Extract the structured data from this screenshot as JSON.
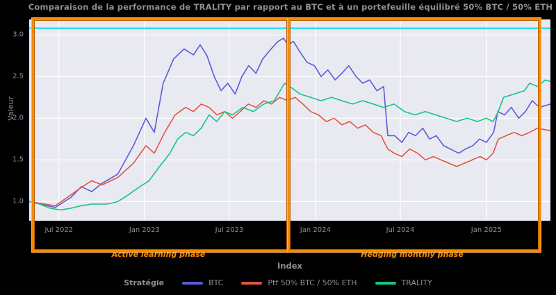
{
  "title": "Comparaison de la performance de TRALITY par rapport au BTC et à un portefeuille équilibré 50% BTC / 50% ETH",
  "axes": {
    "xlabel": "Index",
    "ylabel": "Valeur",
    "x_ticks": [
      {
        "label": "Jul 2022",
        "f": 0.057
      },
      {
        "label": "Jan 2023",
        "f": 0.221
      },
      {
        "label": "Jul 2023",
        "f": 0.384
      },
      {
        "label": "Jan 2024",
        "f": 0.549
      },
      {
        "label": "Jul 2024",
        "f": 0.712
      },
      {
        "label": "Jan 2025",
        "f": 0.877
      }
    ],
    "y_ticks": [
      {
        "label": "1.0",
        "v": 1.0
      },
      {
        "label": "1.5",
        "v": 1.5
      },
      {
        "label": "2.0",
        "v": 2.0
      },
      {
        "label": "2.5",
        "v": 2.5
      },
      {
        "label": "3.0",
        "v": 3.0
      }
    ]
  },
  "annotations": {
    "left_phase_label": "Active learning phase",
    "right_phase_label": "Hedging monthly phase",
    "box_color": "#f68b00"
  },
  "legend": {
    "title": "Stratégie",
    "entries": [
      {
        "label": "BTC",
        "color": "#5b5bd6"
      },
      {
        "label": "Ptf 50% BTC / 50% ETH",
        "color": "#e25440"
      },
      {
        "label": "TRALITY",
        "color": "#12c48b"
      }
    ]
  },
  "chart_data": {
    "type": "line",
    "title": "Comparaison de la performance de TRALITY par rapport au BTC et à un portefeuille équilibré 50% BTC / 50% ETH",
    "xlabel": "Index",
    "ylabel": "Valeur",
    "x_axis": "dates from May 2022 to Apr 2025 (f = fraction of axis width)",
    "ylim": [
      0.77,
      3.185
    ],
    "grid": true,
    "plot_bg": "#e9e9f1",
    "grid_color": "#ffffff",
    "reference_line": {
      "value": 3.08,
      "color": "#00dbe8",
      "name": "max-reference"
    },
    "series": [
      {
        "name": "BTC",
        "color": "#5b5bd6",
        "points": [
          [
            0,
            1.0
          ],
          [
            0.02,
            0.97
          ],
          [
            0.05,
            0.93
          ],
          [
            0.08,
            1.05
          ],
          [
            0.1,
            1.18
          ],
          [
            0.12,
            1.12
          ],
          [
            0.14,
            1.22
          ],
          [
            0.17,
            1.33
          ],
          [
            0.2,
            1.67
          ],
          [
            0.224,
            2.0
          ],
          [
            0.24,
            1.83
          ],
          [
            0.257,
            2.42
          ],
          [
            0.277,
            2.71
          ],
          [
            0.297,
            2.83
          ],
          [
            0.315,
            2.76
          ],
          [
            0.328,
            2.88
          ],
          [
            0.341,
            2.75
          ],
          [
            0.355,
            2.5
          ],
          [
            0.368,
            2.33
          ],
          [
            0.381,
            2.42
          ],
          [
            0.395,
            2.29
          ],
          [
            0.408,
            2.5
          ],
          [
            0.421,
            2.63
          ],
          [
            0.435,
            2.54
          ],
          [
            0.448,
            2.71
          ],
          [
            0.464,
            2.83
          ],
          [
            0.477,
            2.92
          ],
          [
            0.488,
            2.96
          ],
          [
            0.496,
            2.88
          ],
          [
            0.507,
            2.92
          ],
          [
            0.52,
            2.79
          ],
          [
            0.533,
            2.67
          ],
          [
            0.547,
            2.63
          ],
          [
            0.56,
            2.5
          ],
          [
            0.573,
            2.58
          ],
          [
            0.587,
            2.46
          ],
          [
            0.6,
            2.54
          ],
          [
            0.613,
            2.63
          ],
          [
            0.627,
            2.5
          ],
          [
            0.64,
            2.42
          ],
          [
            0.653,
            2.46
          ],
          [
            0.667,
            2.33
          ],
          [
            0.68,
            2.38
          ],
          [
            0.688,
            1.79
          ],
          [
            0.701,
            1.79
          ],
          [
            0.715,
            1.71
          ],
          [
            0.728,
            1.83
          ],
          [
            0.741,
            1.79
          ],
          [
            0.755,
            1.88
          ],
          [
            0.768,
            1.75
          ],
          [
            0.781,
            1.79
          ],
          [
            0.795,
            1.67
          ],
          [
            0.808,
            1.63
          ],
          [
            0.824,
            1.58
          ],
          [
            0.837,
            1.63
          ],
          [
            0.851,
            1.67
          ],
          [
            0.864,
            1.75
          ],
          [
            0.877,
            1.71
          ],
          [
            0.891,
            1.83
          ],
          [
            0.899,
            2.08
          ],
          [
            0.912,
            2.04
          ],
          [
            0.925,
            2.13
          ],
          [
            0.939,
            2.0
          ],
          [
            0.952,
            2.08
          ],
          [
            0.965,
            2.21
          ],
          [
            0.979,
            2.13
          ],
          [
            1.0,
            2.17
          ]
        ]
      },
      {
        "name": "Ptf 50% BTC / 50% ETH",
        "color": "#e25440",
        "points": [
          [
            0,
            1.0
          ],
          [
            0.03,
            0.97
          ],
          [
            0.05,
            0.95
          ],
          [
            0.08,
            1.08
          ],
          [
            0.1,
            1.17
          ],
          [
            0.12,
            1.25
          ],
          [
            0.14,
            1.2
          ],
          [
            0.17,
            1.29
          ],
          [
            0.2,
            1.46
          ],
          [
            0.224,
            1.67
          ],
          [
            0.24,
            1.58
          ],
          [
            0.26,
            1.83
          ],
          [
            0.28,
            2.04
          ],
          [
            0.3,
            2.13
          ],
          [
            0.315,
            2.08
          ],
          [
            0.33,
            2.17
          ],
          [
            0.345,
            2.13
          ],
          [
            0.36,
            2.04
          ],
          [
            0.375,
            2.08
          ],
          [
            0.39,
            2.0
          ],
          [
            0.405,
            2.08
          ],
          [
            0.42,
            2.17
          ],
          [
            0.435,
            2.13
          ],
          [
            0.45,
            2.21
          ],
          [
            0.465,
            2.17
          ],
          [
            0.48,
            2.25
          ],
          [
            0.496,
            2.21
          ],
          [
            0.51,
            2.25
          ],
          [
            0.525,
            2.17
          ],
          [
            0.54,
            2.08
          ],
          [
            0.555,
            2.04
          ],
          [
            0.57,
            1.96
          ],
          [
            0.585,
            2.0
          ],
          [
            0.6,
            1.92
          ],
          [
            0.615,
            1.96
          ],
          [
            0.63,
            1.88
          ],
          [
            0.645,
            1.92
          ],
          [
            0.66,
            1.83
          ],
          [
            0.675,
            1.79
          ],
          [
            0.688,
            1.63
          ],
          [
            0.7,
            1.58
          ],
          [
            0.715,
            1.54
          ],
          [
            0.73,
            1.63
          ],
          [
            0.745,
            1.58
          ],
          [
            0.76,
            1.5
          ],
          [
            0.775,
            1.54
          ],
          [
            0.79,
            1.5
          ],
          [
            0.805,
            1.46
          ],
          [
            0.82,
            1.42
          ],
          [
            0.835,
            1.46
          ],
          [
            0.85,
            1.5
          ],
          [
            0.865,
            1.54
          ],
          [
            0.877,
            1.5
          ],
          [
            0.89,
            1.58
          ],
          [
            0.9,
            1.75
          ],
          [
            0.915,
            1.79
          ],
          [
            0.93,
            1.83
          ],
          [
            0.945,
            1.79
          ],
          [
            0.96,
            1.83
          ],
          [
            0.975,
            1.88
          ],
          [
            1.0,
            1.85
          ]
        ]
      },
      {
        "name": "TRALITY",
        "color": "#12c48b",
        "points": [
          [
            0,
            1.0
          ],
          [
            0.02,
            0.97
          ],
          [
            0.04,
            0.92
          ],
          [
            0.06,
            0.9
          ],
          [
            0.08,
            0.92
          ],
          [
            0.1,
            0.95
          ],
          [
            0.12,
            0.97
          ],
          [
            0.15,
            0.97
          ],
          [
            0.17,
            1.0
          ],
          [
            0.19,
            1.08
          ],
          [
            0.21,
            1.17
          ],
          [
            0.23,
            1.25
          ],
          [
            0.25,
            1.42
          ],
          [
            0.27,
            1.58
          ],
          [
            0.285,
            1.75
          ],
          [
            0.3,
            1.83
          ],
          [
            0.315,
            1.79
          ],
          [
            0.33,
            1.88
          ],
          [
            0.345,
            2.04
          ],
          [
            0.36,
            1.96
          ],
          [
            0.375,
            2.08
          ],
          [
            0.39,
            2.04
          ],
          [
            0.41,
            2.13
          ],
          [
            0.43,
            2.08
          ],
          [
            0.45,
            2.17
          ],
          [
            0.47,
            2.21
          ],
          [
            0.49,
            2.42
          ],
          [
            0.5,
            2.38
          ],
          [
            0.52,
            2.29
          ],
          [
            0.54,
            2.25
          ],
          [
            0.56,
            2.21
          ],
          [
            0.58,
            2.25
          ],
          [
            0.6,
            2.21
          ],
          [
            0.62,
            2.17
          ],
          [
            0.64,
            2.21
          ],
          [
            0.66,
            2.17
          ],
          [
            0.68,
            2.13
          ],
          [
            0.7,
            2.17
          ],
          [
            0.72,
            2.08
          ],
          [
            0.74,
            2.04
          ],
          [
            0.76,
            2.08
          ],
          [
            0.78,
            2.04
          ],
          [
            0.8,
            2.0
          ],
          [
            0.82,
            1.96
          ],
          [
            0.84,
            2.0
          ],
          [
            0.86,
            1.96
          ],
          [
            0.877,
            2.0
          ],
          [
            0.89,
            1.96
          ],
          [
            0.9,
            2.08
          ],
          [
            0.91,
            2.25
          ],
          [
            0.93,
            2.29
          ],
          [
            0.95,
            2.33
          ],
          [
            0.96,
            2.42
          ],
          [
            0.975,
            2.38
          ],
          [
            0.99,
            2.46
          ],
          [
            1.0,
            2.44
          ]
        ]
      }
    ]
  }
}
